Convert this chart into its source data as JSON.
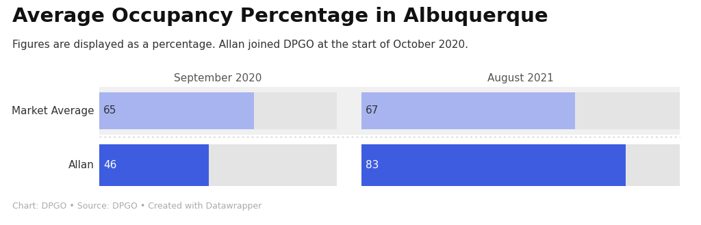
{
  "title": "Average Occupancy Percentage in Albuquerque",
  "subtitle": "Figures are displayed as a percentage. Allan joined DPGO at the start of October 2020.",
  "footer": "Chart: DPGO • Source: DPGO • Created with Datawrapper",
  "col_headers": [
    "September 2020",
    "August 2021"
  ],
  "row_labels": [
    "Market Average",
    "Allan"
  ],
  "values": [
    [
      65,
      67
    ],
    [
      46,
      83
    ]
  ],
  "max_val": 100,
  "bar_color_light": "#a8b4f0",
  "bar_color_dark": "#3d5ce0",
  "bg_bar_color": "#e4e4e4",
  "row_bg_color_0": "#f0f0f0",
  "row_bg_color_1": "#ffffff",
  "title_fontsize": 21,
  "subtitle_fontsize": 11,
  "col_header_fontsize": 11,
  "row_label_fontsize": 11,
  "value_fontsize": 11,
  "footer_fontsize": 9,
  "background_color": "#ffffff",
  "label_color": "#333333",
  "col_header_color": "#555555",
  "footer_color": "#aaaaaa",
  "sep_color": "#cccccc"
}
